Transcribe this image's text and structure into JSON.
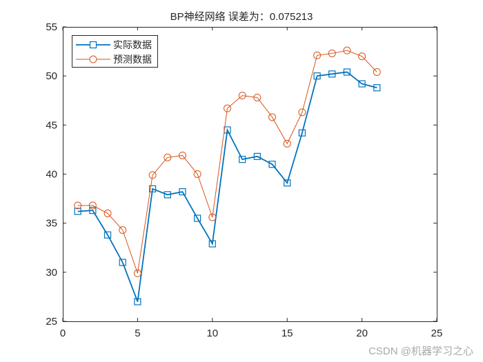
{
  "figure": {
    "title": "BP神经网络   误差为：0.075213",
    "watermark": "CSDN @机器学习之心"
  },
  "legend": {
    "items": [
      {
        "label": "实际数据",
        "color": "#0072BD",
        "marker": "square"
      },
      {
        "label": "预测数据",
        "color": "#D95319",
        "marker": "circle"
      }
    ]
  },
  "chart_data": {
    "type": "line",
    "title": "BP神经网络   误差为：0.075213",
    "xlabel": "",
    "ylabel": "",
    "xlim": [
      0,
      25
    ],
    "ylim": [
      25,
      55
    ],
    "xticks": [
      0,
      5,
      10,
      15,
      20,
      25
    ],
    "yticks": [
      25,
      30,
      35,
      40,
      45,
      50,
      55
    ],
    "grid": false,
    "legend_position": "upper-left",
    "x": [
      1,
      2,
      3,
      4,
      5,
      6,
      7,
      8,
      9,
      10,
      11,
      12,
      13,
      14,
      15,
      16,
      17,
      18,
      19,
      20,
      21
    ],
    "series": [
      {
        "name": "实际数据",
        "color": "#0072BD",
        "marker": "square",
        "values": [
          36.2,
          36.3,
          33.8,
          31.0,
          27.0,
          38.5,
          37.9,
          38.2,
          35.5,
          32.9,
          44.5,
          41.5,
          41.8,
          41.0,
          39.1,
          44.2,
          50.0,
          50.2,
          50.4,
          49.2,
          48.8
        ]
      },
      {
        "name": "预测数据",
        "color": "#D95319",
        "marker": "circle",
        "values": [
          36.8,
          36.8,
          36.0,
          34.3,
          29.9,
          39.9,
          41.7,
          41.9,
          40.0,
          35.6,
          46.7,
          48.0,
          47.8,
          45.8,
          43.1,
          46.3,
          52.1,
          52.3,
          52.6,
          52.0,
          50.4
        ]
      }
    ]
  }
}
